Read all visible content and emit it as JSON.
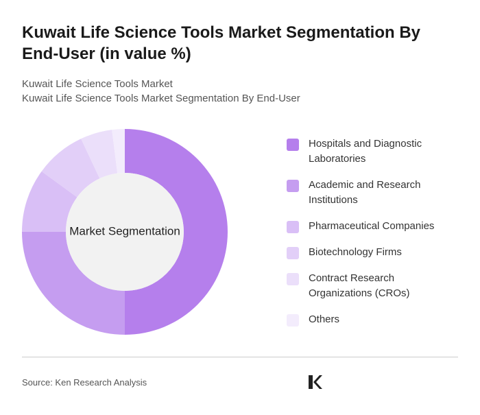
{
  "chart_data": {
    "type": "donut",
    "title": "Kuwait Life Science Tools Market Segmentation By End-User (in value %)",
    "subtitle": [
      "Kuwait Life Science Tools Market",
      "Kuwait Life Science Tools Market Segmentation By End-User"
    ],
    "center_label": "Market Segmentation",
    "categories": [
      "Hospitals and Diagnostic Laboratories",
      "Academic and Research Institutions",
      "Pharmaceutical Companies",
      "Biotechnology Firms",
      "Contract Research Organizations (CROs)",
      "Others"
    ],
    "values": [
      50,
      25,
      10,
      8,
      5,
      2
    ],
    "colors": [
      "#b57fec",
      "#c59df0",
      "#d9bff6",
      "#e2cff8",
      "#ebdffa",
      "#f3ecfc"
    ],
    "source": "Source: Ken Research Analysis",
    "logo": "KEN RESEARCH"
  }
}
